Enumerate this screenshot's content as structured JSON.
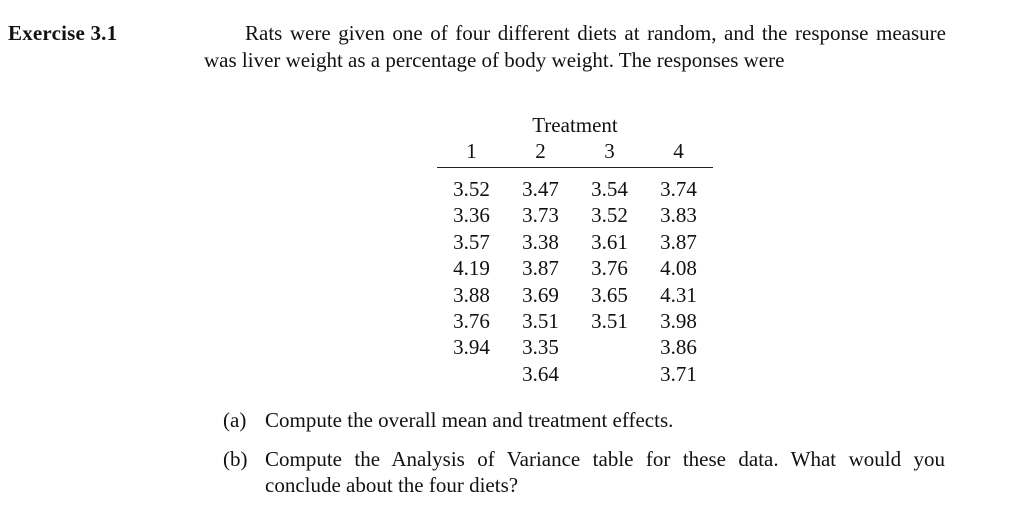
{
  "exercise": {
    "label": "Exercise 3.1",
    "intro": "Rats were given one of four different diets at random, and the response measure was liver weight as a percentage of body weight. The responses were"
  },
  "table": {
    "header": "Treatment",
    "columns": [
      "1",
      "2",
      "3",
      "4"
    ],
    "rows": [
      [
        "3.52",
        "3.47",
        "3.54",
        "3.74"
      ],
      [
        "3.36",
        "3.73",
        "3.52",
        "3.83"
      ],
      [
        "3.57",
        "3.38",
        "3.61",
        "3.87"
      ],
      [
        "4.19",
        "3.87",
        "3.76",
        "4.08"
      ],
      [
        "3.88",
        "3.69",
        "3.65",
        "4.31"
      ],
      [
        "3.76",
        "3.51",
        "3.51",
        "3.98"
      ],
      [
        "3.94",
        "3.35",
        "",
        "3.86"
      ],
      [
        "",
        "3.64",
        "",
        "3.71"
      ]
    ]
  },
  "questions": [
    {
      "label": "(a)",
      "text": "Compute the overall mean and treatment effects."
    },
    {
      "label": "(b)",
      "text": "Compute the Analysis of Variance table for these data. What would you conclude about the four diets?"
    }
  ]
}
